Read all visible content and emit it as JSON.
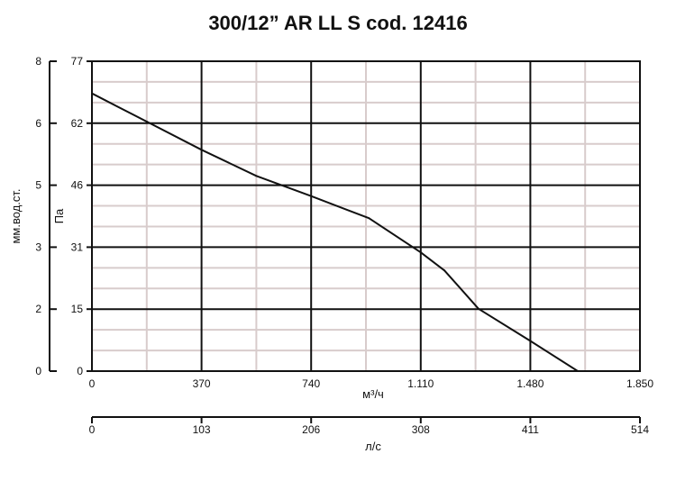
{
  "chart_data": {
    "type": "line",
    "title": "300/12” AR LL S cod. 12416",
    "xlabel": "м³/ч",
    "x2label": "л/с",
    "ylabel": "Па",
    "y2label": "мм.вод.ст.",
    "xlim": [
      0,
      1850
    ],
    "ylim": [
      0,
      77
    ],
    "x_ticks": [
      "0",
      "370",
      "740",
      "1.110",
      "1.480",
      "1.850"
    ],
    "x2_ticks": [
      "0",
      "103",
      "206",
      "308",
      "411",
      "514"
    ],
    "y_ticks": [
      "0",
      "15",
      "31",
      "46",
      "62",
      "77"
    ],
    "y2_ticks": [
      "0",
      "2",
      "3",
      "5",
      "6",
      "8"
    ],
    "grid": true,
    "series": [
      {
        "x": [
          0,
          185,
          370,
          555,
          740,
          935,
          1110,
          1190,
          1305,
          1480,
          1640
        ],
        "y": [
          69,
          62,
          55,
          48.5,
          43.5,
          38,
          29.5,
          25,
          15.5,
          7.5,
          0
        ]
      }
    ]
  }
}
